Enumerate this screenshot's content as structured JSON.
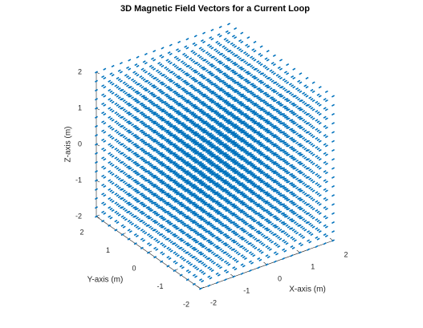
{
  "chart_data": {
    "type": "quiver3",
    "title": "3D Magnetic Field Vectors for a Current Loop",
    "xlabel": "X-axis (m)",
    "ylabel": "Y-axis (m)",
    "zlabel": "Z-axis (m)",
    "color": "#0072bd",
    "xlim": [
      -2,
      2
    ],
    "ylim": [
      -2,
      2
    ],
    "zlim": [
      -2,
      2
    ],
    "xticks": [
      -2,
      -1,
      0,
      1,
      2
    ],
    "yticks": [
      -2,
      -1,
      0,
      1,
      2
    ],
    "zticks": [
      -2,
      -1,
      0,
      1,
      2
    ],
    "grid_x": [
      -2,
      -1.75,
      -1.5,
      -1.25,
      -1,
      -0.75,
      -0.5,
      -0.25,
      0,
      0.25,
      0.5,
      0.75,
      1,
      1.25,
      1.5,
      1.75,
      2
    ],
    "grid_y": [
      -2,
      -1.75,
      -1.5,
      -1.25,
      -1,
      -0.75,
      -0.5,
      -0.25,
      0,
      0.25,
      0.5,
      0.75,
      1,
      1.25,
      1.5,
      1.75,
      2
    ],
    "grid_z": [
      -2,
      -1.75,
      -1.5,
      -1.25,
      -1,
      -0.75,
      -0.5,
      -0.25,
      0,
      0.25,
      0.5,
      0.75,
      1,
      1.25,
      1.5,
      1.75,
      2
    ]
  }
}
